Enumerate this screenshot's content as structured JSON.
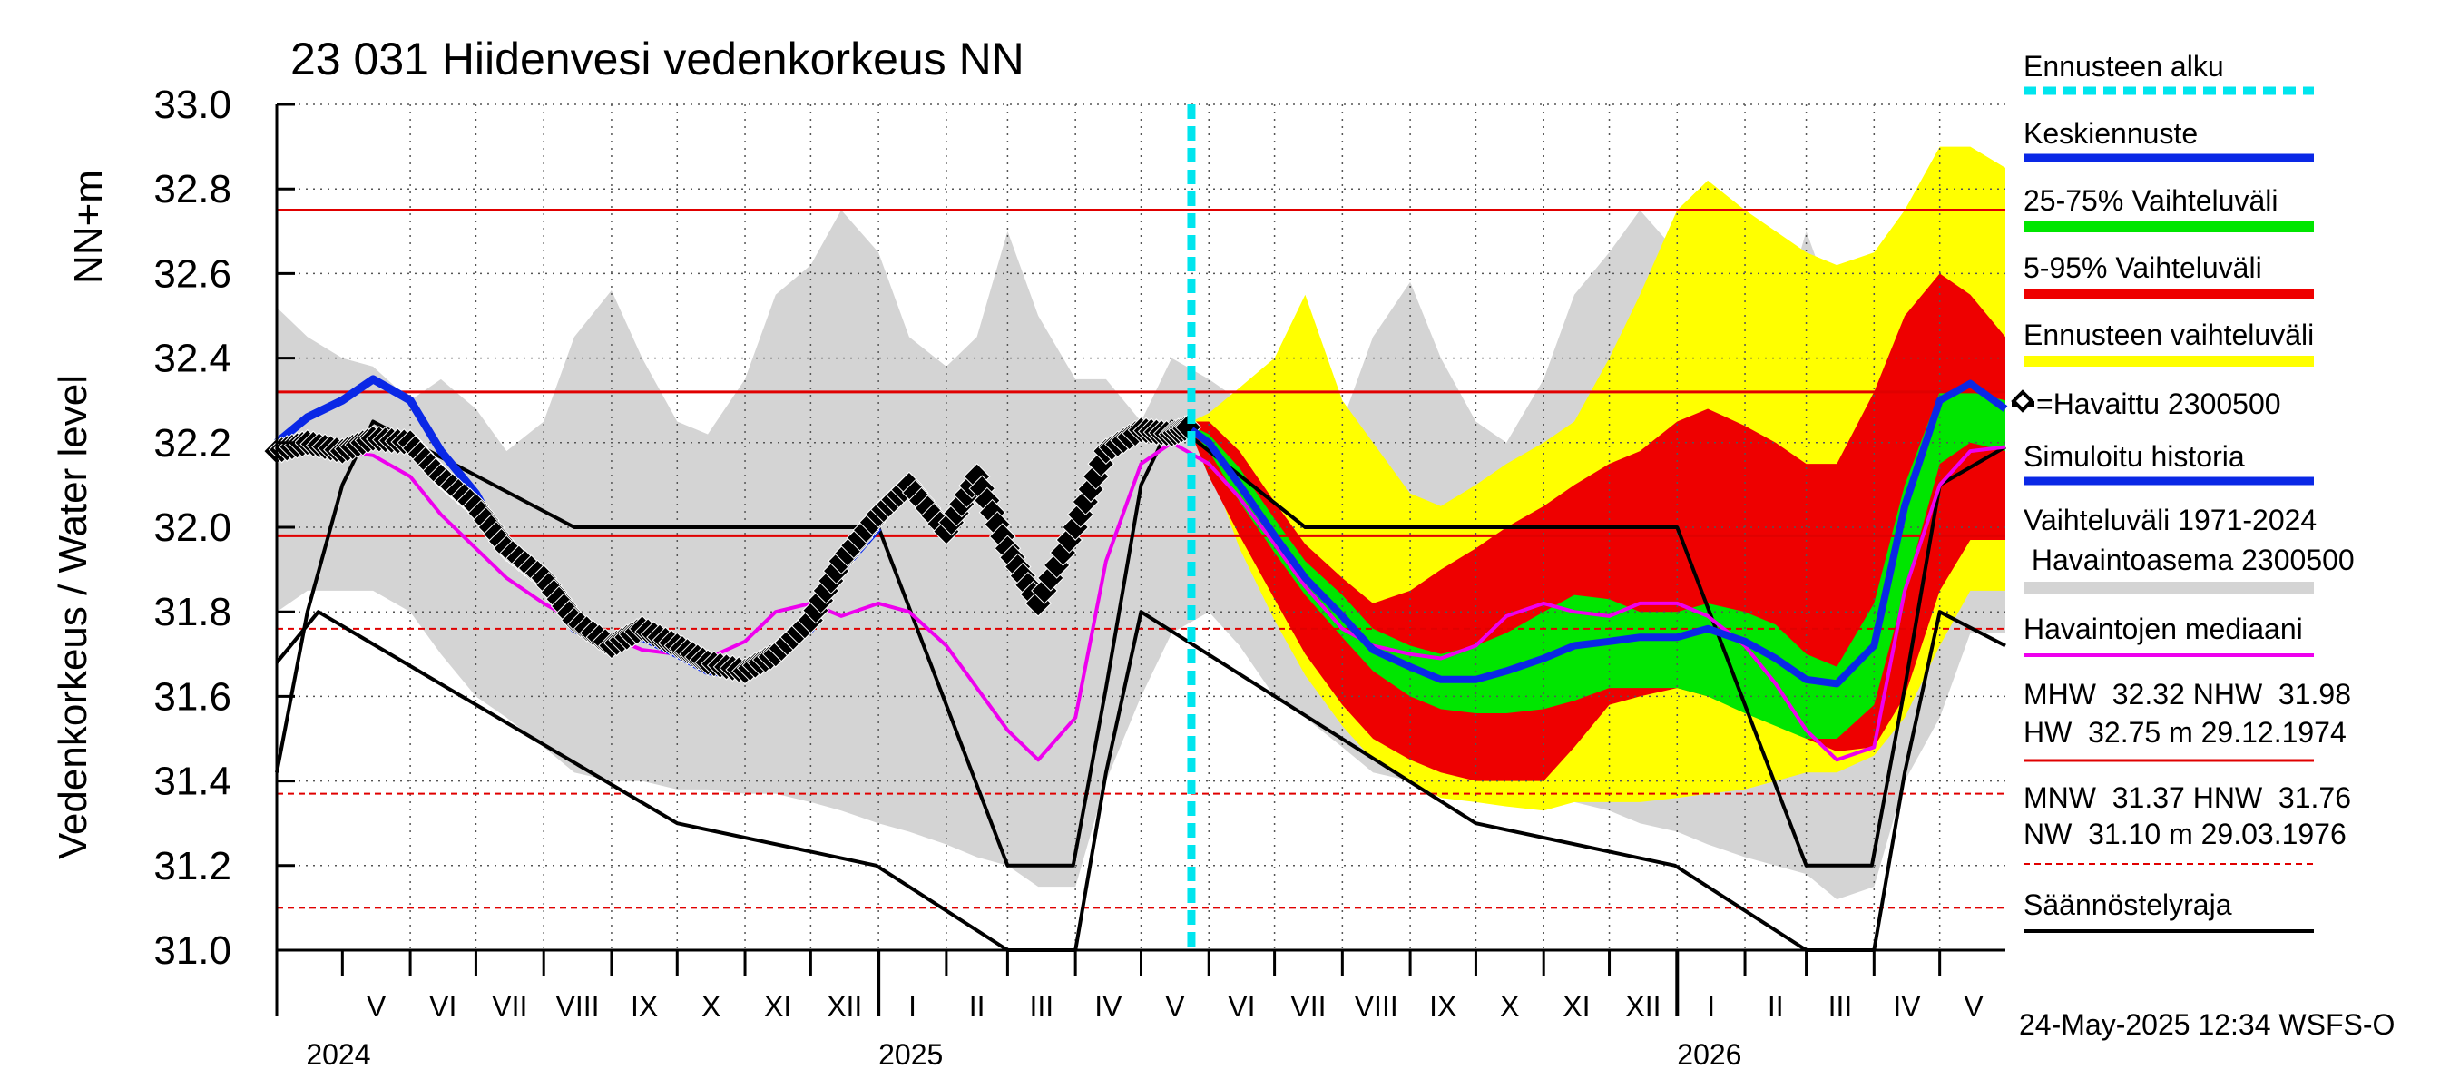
{
  "chart_data": {
    "type": "area",
    "title": "23 031 Hiidenvesi vedenkorkeus NN",
    "ylabel_top": "NN+m",
    "ylabel": "Vedenkorkeus / Water level",
    "ylim": [
      31.0,
      33.0
    ],
    "y_ticks": [
      "31.0",
      "31.2",
      "31.4",
      "31.6",
      "31.8",
      "32.0",
      "32.2",
      "32.4",
      "32.6",
      "32.8",
      "33.0"
    ],
    "x_start": "2024-04-01",
    "x_end": "2026-05-31",
    "forecast_start": "2025-05-24",
    "month_labels": [
      {
        "label": "V",
        "date": "2024-05-01"
      },
      {
        "label": "VI",
        "date": "2024-06-01"
      },
      {
        "label": "VII",
        "date": "2024-07-01"
      },
      {
        "label": "VIII",
        "date": "2024-08-01"
      },
      {
        "label": "IX",
        "date": "2024-09-01"
      },
      {
        "label": "X",
        "date": "2024-10-01"
      },
      {
        "label": "XI",
        "date": "2024-11-01"
      },
      {
        "label": "XII",
        "date": "2024-12-01"
      },
      {
        "label": "I",
        "date": "2025-01-01"
      },
      {
        "label": "II",
        "date": "2025-02-01"
      },
      {
        "label": "III",
        "date": "2025-03-01"
      },
      {
        "label": "IV",
        "date": "2025-04-01"
      },
      {
        "label": "V",
        "date": "2025-05-01"
      },
      {
        "label": "VI",
        "date": "2025-06-01"
      },
      {
        "label": "VII",
        "date": "2025-07-01"
      },
      {
        "label": "VIII",
        "date": "2025-08-01"
      },
      {
        "label": "IX",
        "date": "2025-09-01"
      },
      {
        "label": "X",
        "date": "2025-10-01"
      },
      {
        "label": "XI",
        "date": "2025-11-01"
      },
      {
        "label": "XII",
        "date": "2025-12-01"
      },
      {
        "label": "I",
        "date": "2026-01-01"
      },
      {
        "label": "II",
        "date": "2026-02-01"
      },
      {
        "label": "III",
        "date": "2026-03-01"
      },
      {
        "label": "IV",
        "date": "2026-04-01"
      },
      {
        "label": "V",
        "date": "2026-05-01"
      }
    ],
    "year_labels": [
      {
        "label": "2024",
        "date": "2024-05-01"
      },
      {
        "label": "2025",
        "date": "2025-01-01"
      },
      {
        "label": "2026",
        "date": "2026-01-01"
      }
    ],
    "reference_lines": [
      {
        "name": "HW",
        "value": 32.75,
        "style": "solid",
        "color": "#e00000"
      },
      {
        "name": "MHW",
        "value": 32.32,
        "style": "solid",
        "color": "#e00000"
      },
      {
        "name": "NHW",
        "value": 31.98,
        "style": "solid",
        "color": "#e00000"
      },
      {
        "name": "HNW",
        "value": 31.76,
        "style": "dashed",
        "color": "#e00000"
      },
      {
        "name": "MNW",
        "value": 31.37,
        "style": "dashed",
        "color": "#e00000"
      },
      {
        "name": "NW",
        "value": 31.1,
        "style": "dashed",
        "color": "#e00000"
      }
    ],
    "colors": {
      "forecast_start": "#00e5ee",
      "mean_forecast": "#0a28e6",
      "iqr": "#00e600",
      "p5_95": "#ee0000",
      "forecast_range": "#ffff00",
      "observed": "#000000",
      "simulated": "#0a28e6",
      "history_range": "#d4d4d4",
      "median": "#ee00ee",
      "regulation": "#000000"
    },
    "history_band": {
      "x": [
        "2024-04-01",
        "2024-04-15",
        "2024-05-01",
        "2024-05-15",
        "2024-06-01",
        "2024-06-15",
        "2024-07-01",
        "2024-07-15",
        "2024-08-01",
        "2024-08-15",
        "2024-09-01",
        "2024-09-15",
        "2024-10-01",
        "2024-10-15",
        "2024-11-01",
        "2024-11-15",
        "2024-12-01",
        "2024-12-15",
        "2025-01-01",
        "2025-01-15",
        "2025-02-01",
        "2025-02-15",
        "2025-03-01",
        "2025-03-15",
        "2025-04-01",
        "2025-04-15",
        "2025-05-01",
        "2025-05-15",
        "2025-06-01",
        "2025-06-15",
        "2025-07-01",
        "2025-07-15",
        "2025-08-01",
        "2025-08-15",
        "2025-09-01",
        "2025-09-15",
        "2025-10-01",
        "2025-10-15",
        "2025-11-01",
        "2025-11-15",
        "2025-12-01",
        "2025-12-15",
        "2026-01-01",
        "2026-01-15",
        "2026-02-01",
        "2026-02-15",
        "2026-03-01",
        "2026-03-15",
        "2026-04-01",
        "2026-04-15",
        "2026-05-01",
        "2026-05-15",
        "2026-05-31"
      ],
      "low": [
        31.8,
        31.85,
        31.85,
        31.85,
        31.8,
        31.7,
        31.6,
        31.55,
        31.48,
        31.42,
        31.4,
        31.4,
        31.38,
        31.38,
        31.37,
        31.37,
        31.35,
        31.33,
        31.3,
        31.28,
        31.25,
        31.22,
        31.2,
        31.15,
        31.15,
        31.4,
        31.6,
        31.75,
        31.8,
        31.72,
        31.6,
        31.55,
        31.48,
        31.42,
        31.4,
        31.38,
        31.37,
        31.37,
        31.37,
        31.35,
        31.33,
        31.3,
        31.28,
        31.25,
        31.22,
        31.2,
        31.18,
        31.12,
        31.15,
        31.4,
        31.55,
        31.75,
        31.75
      ],
      "high": [
        32.52,
        32.45,
        32.4,
        32.38,
        32.3,
        32.35,
        32.28,
        32.18,
        32.25,
        32.45,
        32.56,
        32.4,
        32.25,
        32.22,
        32.35,
        32.55,
        32.62,
        32.75,
        32.65,
        32.45,
        32.38,
        32.45,
        32.7,
        32.5,
        32.35,
        32.35,
        32.25,
        32.4,
        32.35,
        32.3,
        32.25,
        32.15,
        32.25,
        32.45,
        32.58,
        32.4,
        32.25,
        32.2,
        32.35,
        32.55,
        32.65,
        32.75,
        32.65,
        32.45,
        32.4,
        32.45,
        32.7,
        32.5,
        32.35,
        32.35,
        32.25,
        32.28,
        32.28
      ]
    },
    "forecast_bands": {
      "x": [
        "2025-05-24",
        "2025-06-01",
        "2025-06-15",
        "2025-07-01",
        "2025-07-15",
        "2025-08-01",
        "2025-08-15",
        "2025-09-01",
        "2025-09-15",
        "2025-10-01",
        "2025-10-15",
        "2025-11-01",
        "2025-11-15",
        "2025-12-01",
        "2025-12-15",
        "2026-01-01",
        "2026-01-15",
        "2026-02-01",
        "2026-02-15",
        "2026-03-01",
        "2026-03-15",
        "2026-04-01",
        "2026-04-15",
        "2026-05-01",
        "2026-05-15",
        "2026-05-31"
      ],
      "range_low": [
        32.23,
        32.15,
        31.95,
        31.78,
        31.65,
        31.53,
        31.45,
        31.4,
        31.36,
        31.35,
        31.34,
        31.33,
        31.35,
        31.35,
        31.35,
        31.36,
        31.37,
        31.38,
        31.4,
        31.42,
        31.42,
        31.46,
        31.55,
        31.72,
        31.85,
        31.85
      ],
      "range_high": [
        32.25,
        32.27,
        32.33,
        32.4,
        32.55,
        32.3,
        32.2,
        32.08,
        32.05,
        32.1,
        32.15,
        32.2,
        32.25,
        32.4,
        32.55,
        32.75,
        32.82,
        32.75,
        32.7,
        32.65,
        32.62,
        32.65,
        32.75,
        32.9,
        32.9,
        32.85
      ],
      "p5": [
        32.22,
        32.12,
        31.98,
        31.83,
        31.7,
        31.58,
        31.5,
        31.45,
        31.42,
        31.4,
        31.4,
        31.4,
        31.48,
        31.58,
        31.6,
        31.62,
        31.6,
        31.58,
        31.55,
        31.5,
        31.47,
        31.48,
        31.6,
        31.85,
        31.97,
        31.97
      ],
      "p95": [
        32.25,
        32.25,
        32.18,
        32.06,
        31.96,
        31.88,
        31.82,
        31.85,
        31.9,
        31.95,
        32.0,
        32.05,
        32.1,
        32.15,
        32.18,
        32.25,
        32.28,
        32.24,
        32.2,
        32.15,
        32.15,
        32.32,
        32.5,
        32.6,
        32.55,
        32.45
      ],
      "p25": [
        32.23,
        32.18,
        32.06,
        31.94,
        31.84,
        31.74,
        31.66,
        31.6,
        31.57,
        31.56,
        31.56,
        31.57,
        31.59,
        31.62,
        31.62,
        31.62,
        31.6,
        31.56,
        31.53,
        31.5,
        31.5,
        31.58,
        31.85,
        32.15,
        32.2,
        32.18
      ],
      "p75": [
        32.24,
        32.22,
        32.14,
        32.02,
        31.92,
        31.84,
        31.76,
        31.72,
        31.7,
        31.72,
        31.75,
        31.8,
        31.84,
        31.83,
        31.8,
        31.8,
        31.82,
        31.8,
        31.77,
        31.7,
        31.67,
        31.82,
        32.1,
        32.32,
        32.32,
        32.3
      ],
      "mean": [
        32.23,
        32.2,
        32.1,
        31.98,
        31.88,
        31.79,
        31.71,
        31.67,
        31.64,
        31.64,
        31.66,
        31.69,
        31.72,
        31.73,
        31.74,
        31.74,
        31.76,
        31.73,
        31.69,
        31.64,
        31.63,
        31.72,
        32.05,
        32.3,
        32.34,
        32.28
      ]
    },
    "observed": {
      "x": [
        "2024-04-01",
        "2024-04-15",
        "2024-05-01",
        "2024-05-15",
        "2024-06-01",
        "2024-06-15",
        "2024-07-01",
        "2024-07-15",
        "2024-08-01",
        "2024-08-15",
        "2024-09-01",
        "2024-09-15",
        "2024-10-01",
        "2024-10-15",
        "2024-11-01",
        "2024-11-15",
        "2024-12-01",
        "2024-12-15",
        "2025-01-01",
        "2025-01-15",
        "2025-02-01",
        "2025-02-15",
        "2025-03-01",
        "2025-03-15",
        "2025-04-01",
        "2025-04-15",
        "2025-05-01",
        "2025-05-15",
        "2025-05-24"
      ],
      "y": [
        32.18,
        32.2,
        32.18,
        32.21,
        32.2,
        32.12,
        32.05,
        31.95,
        31.88,
        31.78,
        31.72,
        31.76,
        31.72,
        31.68,
        31.66,
        31.7,
        31.78,
        31.92,
        32.03,
        32.1,
        31.99,
        32.12,
        31.95,
        31.82,
        32.0,
        32.18,
        32.23,
        32.22,
        32.24
      ]
    },
    "simulated": {
      "x": [
        "2024-04-01",
        "2024-04-15",
        "2024-05-01",
        "2024-05-15",
        "2024-06-01",
        "2024-06-15",
        "2024-07-01",
        "2024-07-15",
        "2024-08-01",
        "2024-08-15",
        "2024-09-01",
        "2024-09-15",
        "2024-10-01",
        "2024-10-15",
        "2024-11-01",
        "2024-11-15",
        "2024-12-01",
        "2024-12-15",
        "2025-01-01"
      ],
      "y": [
        32.2,
        32.26,
        32.3,
        32.35,
        32.3,
        32.18,
        32.08,
        31.95,
        31.86,
        31.76,
        31.72,
        31.74,
        31.7,
        31.66,
        31.65,
        31.7,
        31.76,
        31.9,
        32.0
      ]
    },
    "median": {
      "x": [
        "2024-04-01",
        "2024-04-15",
        "2024-05-01",
        "2024-05-15",
        "2024-06-01",
        "2024-06-15",
        "2024-07-01",
        "2024-07-15",
        "2024-08-01",
        "2024-08-15",
        "2024-09-01",
        "2024-09-15",
        "2024-10-01",
        "2024-10-15",
        "2024-11-01",
        "2024-11-15",
        "2024-12-01",
        "2024-12-15",
        "2025-01-01",
        "2025-01-15",
        "2025-02-01",
        "2025-02-15",
        "2025-03-01",
        "2025-03-15",
        "2025-04-01",
        "2025-04-15",
        "2025-05-01",
        "2025-05-15",
        "2025-06-01",
        "2025-06-15",
        "2025-07-01",
        "2025-07-15",
        "2025-08-01",
        "2025-08-15",
        "2025-09-01",
        "2025-09-15",
        "2025-10-01",
        "2025-10-15",
        "2025-11-01",
        "2025-11-15",
        "2025-12-01",
        "2025-12-15",
        "2026-01-01",
        "2026-01-15",
        "2026-02-01",
        "2026-02-15",
        "2026-03-01",
        "2026-03-15",
        "2026-04-01",
        "2026-04-15",
        "2026-05-01",
        "2026-05-15",
        "2026-05-31"
      ],
      "y": [
        32.18,
        32.18,
        32.18,
        32.17,
        32.12,
        32.03,
        31.95,
        31.88,
        31.82,
        31.78,
        31.74,
        31.71,
        31.7,
        31.69,
        31.73,
        31.8,
        31.82,
        31.79,
        31.82,
        31.8,
        31.72,
        31.62,
        31.52,
        31.45,
        31.55,
        31.92,
        32.15,
        32.2,
        32.15,
        32.07,
        31.96,
        31.86,
        31.76,
        31.72,
        31.7,
        31.69,
        31.72,
        31.79,
        31.82,
        31.8,
        31.79,
        31.82,
        31.82,
        31.79,
        31.72,
        31.63,
        31.52,
        31.45,
        31.48,
        31.85,
        32.1,
        32.18,
        32.19
      ]
    },
    "regulation_upper": {
      "x": [
        "2024-04-01",
        "2024-04-15",
        "2024-05-01",
        "2024-05-15",
        "2024-08-15",
        "2025-01-01",
        "2025-03-01",
        "2025-03-31",
        "2025-04-15",
        "2025-05-01",
        "2025-05-15",
        "2025-07-15",
        "2026-01-01",
        "2026-03-01",
        "2026-03-31",
        "2026-04-15",
        "2026-05-01",
        "2026-05-31"
      ],
      "y": [
        31.42,
        31.8,
        32.1,
        32.25,
        32.0,
        32.0,
        31.2,
        31.2,
        31.62,
        32.1,
        32.25,
        32.0,
        32.0,
        31.2,
        31.2,
        31.62,
        32.1,
        32.19
      ]
    },
    "regulation_lower": {
      "x": [
        "2024-04-01",
        "2024-04-20",
        "2024-10-01",
        "2024-12-31",
        "2025-03-01",
        "2025-04-01",
        "2025-04-15",
        "2025-05-01",
        "2025-10-01",
        "2025-12-31",
        "2026-03-01",
        "2026-04-01",
        "2026-04-15",
        "2026-05-01",
        "2026-05-31"
      ],
      "y": [
        31.68,
        31.8,
        31.3,
        31.2,
        31.0,
        31.0,
        31.42,
        31.8,
        31.3,
        31.2,
        31.0,
        31.0,
        31.42,
        31.8,
        31.72
      ]
    }
  },
  "legend": {
    "forecast_start": "Ennusteen alku",
    "mean_forecast": "Keskiennuste",
    "iqr": "25-75% Vaihteluväli",
    "p5_95": "5-95% Vaihteluväli",
    "forecast_range": "Ennusteen vaihteluväli",
    "observed": "=Havaittu 2300500",
    "simulated": "Simuloitu historia",
    "history_range_1": "Vaihteluväli 1971-2024",
    "history_range_2": " Havaintoasema 2300500",
    "median": "Havaintojen mediaani",
    "stats_1": "MHW  32.32 NHW  31.98",
    "stats_2": "HW  32.75 m 29.12.1974",
    "stats_3": "MNW  31.37 HNW  31.76",
    "stats_4": "NW  31.10 m 29.03.1976",
    "regulation": "Säännöstelyraja"
  },
  "footer": "24-May-2025 12:34 WSFS-O"
}
